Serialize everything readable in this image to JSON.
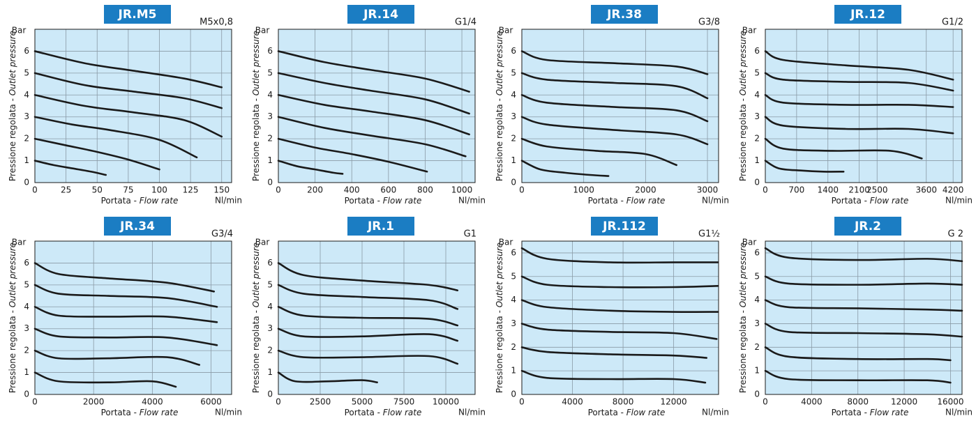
{
  "chart_data": [
    {
      "type": "line",
      "title": "JR.M5",
      "subtitle": "M5x0,8",
      "y_unit": "Bar",
      "x_unit": "Nl/min",
      "y_label": {
        "regular": "Pressione regolata - ",
        "italic": "Outlet pressure"
      },
      "x_label": {
        "regular": "Portata - ",
        "italic": "Flow rate"
      },
      "color": "#1a1a1a",
      "grid": true,
      "xlim": [
        0,
        158
      ],
      "xticks": [
        0,
        25,
        50,
        75,
        100,
        125,
        150
      ],
      "ylim": [
        0,
        7
      ],
      "yticks": [
        0,
        1,
        2,
        3,
        4,
        5,
        6
      ],
      "series": [
        {
          "x": [
            0,
            15,
            30,
            45,
            57
          ],
          "values": [
            1,
            0.8,
            0.65,
            0.5,
            0.35
          ]
        },
        {
          "x": [
            0,
            25,
            50,
            75,
            100
          ],
          "values": [
            2,
            1.7,
            1.4,
            1.05,
            0.6
          ]
        },
        {
          "x": [
            0,
            30,
            60,
            100,
            130
          ],
          "values": [
            3,
            2.65,
            2.4,
            1.95,
            1.15
          ]
        },
        {
          "x": [
            0,
            40,
            80,
            120,
            150
          ],
          "values": [
            4,
            3.5,
            3.2,
            2.85,
            2.1
          ]
        },
        {
          "x": [
            0,
            40,
            80,
            120,
            150
          ],
          "values": [
            5,
            4.45,
            4.15,
            3.85,
            3.4
          ]
        },
        {
          "x": [
            0,
            40,
            80,
            120,
            150
          ],
          "values": [
            6,
            5.45,
            5.1,
            4.75,
            4.35
          ]
        }
      ]
    },
    {
      "type": "line",
      "title": "JR.14",
      "subtitle": "G1/4",
      "y_unit": "Bar",
      "x_unit": "Nl/min",
      "y_label": {
        "regular": "Pressione regolata - ",
        "italic": "Outlet pressure"
      },
      "x_label": {
        "regular": "Portata - ",
        "italic": "Flow rate"
      },
      "color": "#1a1a1a",
      "grid": true,
      "xlim": [
        0,
        1072
      ],
      "xticks": [
        0,
        200,
        400,
        600,
        800,
        1000
      ],
      "ylim": [
        0,
        7
      ],
      "yticks": [
        0,
        1,
        2,
        3,
        4,
        5,
        6
      ],
      "series": [
        {
          "x": [
            0,
            100,
            200,
            300,
            350
          ],
          "values": [
            1,
            0.75,
            0.6,
            0.45,
            0.4
          ]
        },
        {
          "x": [
            0,
            200,
            400,
            600,
            810
          ],
          "values": [
            2,
            1.6,
            1.3,
            0.95,
            0.5
          ]
        },
        {
          "x": [
            0,
            250,
            500,
            800,
            1020
          ],
          "values": [
            3,
            2.5,
            2.15,
            1.75,
            1.2
          ]
        },
        {
          "x": [
            0,
            250,
            500,
            800,
            1040
          ],
          "values": [
            4,
            3.55,
            3.25,
            2.85,
            2.2
          ]
        },
        {
          "x": [
            0,
            250,
            500,
            800,
            1040
          ],
          "values": [
            5,
            4.55,
            4.2,
            3.8,
            3.15
          ]
        },
        {
          "x": [
            0,
            250,
            500,
            800,
            1040
          ],
          "values": [
            6,
            5.5,
            5.15,
            4.75,
            4.15
          ]
        }
      ]
    },
    {
      "type": "line",
      "title": "JR.38",
      "subtitle": "G3/8",
      "y_unit": "Bar",
      "x_unit": "Nl/min",
      "y_label": {
        "regular": "Pressione regolata - ",
        "italic": "Outlet pressure"
      },
      "x_label": {
        "regular": "Portata - ",
        "italic": "Flow rate"
      },
      "color": "#1a1a1a",
      "grid": true,
      "xlim": [
        0,
        3180
      ],
      "xticks": [
        0,
        1000,
        2000,
        3000
      ],
      "ylim": [
        0,
        7
      ],
      "yticks": [
        0,
        1,
        2,
        3,
        4,
        5,
        6
      ],
      "series": [
        {
          "x": [
            0,
            300,
            700,
            1100,
            1400
          ],
          "values": [
            1,
            0.6,
            0.45,
            0.35,
            0.3
          ]
        },
        {
          "x": [
            0,
            400,
            1200,
            2000,
            2500
          ],
          "values": [
            2,
            1.65,
            1.45,
            1.3,
            0.8
          ]
        },
        {
          "x": [
            0,
            400,
            1500,
            2500,
            3000
          ],
          "values": [
            3,
            2.65,
            2.4,
            2.2,
            1.75
          ]
        },
        {
          "x": [
            0,
            400,
            1500,
            2500,
            3000
          ],
          "values": [
            4,
            3.65,
            3.45,
            3.3,
            2.8
          ]
        },
        {
          "x": [
            0,
            400,
            1500,
            2500,
            3000
          ],
          "values": [
            5,
            4.7,
            4.55,
            4.4,
            3.85
          ]
        },
        {
          "x": [
            0,
            400,
            1500,
            2500,
            3000
          ],
          "values": [
            6,
            5.6,
            5.45,
            5.3,
            4.95
          ]
        }
      ]
    },
    {
      "type": "line",
      "title": "JR.12",
      "subtitle": "G1/2",
      "y_unit": "Bar",
      "x_unit": "Nl/min",
      "y_label": {
        "regular": "Pressione regolata - ",
        "italic": "Outlet pressure"
      },
      "x_label": {
        "regular": "Portata - ",
        "italic": "Flow rate"
      },
      "color": "#1a1a1a",
      "grid": true,
      "xlim": [
        0,
        4400
      ],
      "xticks": [
        0,
        700,
        1400,
        2100,
        2500,
        3600,
        4200
      ],
      "ylim": [
        0,
        7
      ],
      "yticks": [
        0,
        1,
        2,
        3,
        4,
        5,
        6
      ],
      "series": [
        {
          "x": [
            0,
            300,
            800,
            1300,
            1750
          ],
          "values": [
            1,
            0.65,
            0.55,
            0.5,
            0.5
          ]
        },
        {
          "x": [
            0,
            400,
            1500,
            2800,
            3500
          ],
          "values": [
            2,
            1.55,
            1.45,
            1.45,
            1.1
          ]
        },
        {
          "x": [
            0,
            400,
            1800,
            3200,
            4200
          ],
          "values": [
            3,
            2.6,
            2.45,
            2.45,
            2.25
          ]
        },
        {
          "x": [
            0,
            400,
            1800,
            3200,
            4200
          ],
          "values": [
            4,
            3.65,
            3.55,
            3.55,
            3.45
          ]
        },
        {
          "x": [
            0,
            400,
            1800,
            3200,
            4200
          ],
          "values": [
            5,
            4.7,
            4.6,
            4.55,
            4.2
          ]
        },
        {
          "x": [
            0,
            400,
            1800,
            3200,
            4200
          ],
          "values": [
            6,
            5.6,
            5.35,
            5.15,
            4.7
          ]
        }
      ]
    },
    {
      "type": "line",
      "title": "JR.34",
      "subtitle": "G3/4",
      "y_unit": "Bar",
      "x_unit": "Nl/min",
      "y_label": {
        "regular": "Pressione regolata - ",
        "italic": "Outlet pressure"
      },
      "x_label": {
        "regular": "Portata - ",
        "italic": "Flow rate"
      },
      "color": "#1a1a1a",
      "grid": true,
      "xlim": [
        0,
        6700
      ],
      "xticks": [
        0,
        2000,
        4000,
        6000
      ],
      "ylim": [
        0,
        7
      ],
      "yticks": [
        0,
        1,
        2,
        3,
        4,
        5,
        6
      ],
      "series": [
        {
          "x": [
            0,
            800,
            2500,
            4000,
            4800
          ],
          "values": [
            1,
            0.6,
            0.55,
            0.6,
            0.35
          ]
        },
        {
          "x": [
            0,
            800,
            2500,
            4500,
            5600
          ],
          "values": [
            2,
            1.65,
            1.65,
            1.7,
            1.35
          ]
        },
        {
          "x": [
            0,
            800,
            2500,
            4500,
            6200
          ],
          "values": [
            3,
            2.65,
            2.6,
            2.6,
            2.25
          ]
        },
        {
          "x": [
            0,
            800,
            2500,
            4500,
            6200
          ],
          "values": [
            4,
            3.6,
            3.55,
            3.55,
            3.3
          ]
        },
        {
          "x": [
            0,
            800,
            2500,
            4500,
            6200
          ],
          "values": [
            5,
            4.6,
            4.5,
            4.4,
            4.0
          ]
        },
        {
          "x": [
            0,
            800,
            2500,
            4500,
            6100
          ],
          "values": [
            6,
            5.5,
            5.3,
            5.1,
            4.7
          ]
        }
      ]
    },
    {
      "type": "line",
      "title": "JR.1",
      "subtitle": "G1",
      "y_unit": "Bar",
      "x_unit": "Nl/min",
      "y_label": {
        "regular": "Pressione regolata - ",
        "italic": "Outlet pressure"
      },
      "x_label": {
        "regular": "Portata - ",
        "italic": "Flow rate"
      },
      "color": "#1a1a1a",
      "grid": true,
      "xlim": [
        0,
        11750
      ],
      "xticks": [
        0,
        2500,
        5000,
        7500,
        10000
      ],
      "ylim": [
        0,
        7
      ],
      "yticks": [
        0,
        1,
        2,
        3,
        4,
        5,
        6
      ],
      "series": [
        {
          "x": [
            0,
            1000,
            3000,
            5000,
            5900
          ],
          "values": [
            1,
            0.6,
            0.6,
            0.65,
            0.55
          ]
        },
        {
          "x": [
            0,
            1500,
            5000,
            9000,
            10700
          ],
          "values": [
            2,
            1.7,
            1.7,
            1.75,
            1.4
          ]
        },
        {
          "x": [
            0,
            1500,
            5000,
            9000,
            10700
          ],
          "values": [
            3,
            2.65,
            2.65,
            2.75,
            2.45
          ]
        },
        {
          "x": [
            0,
            1500,
            5000,
            9000,
            10700
          ],
          "values": [
            4,
            3.6,
            3.5,
            3.45,
            3.15
          ]
        },
        {
          "x": [
            0,
            1500,
            5000,
            9000,
            10700
          ],
          "values": [
            5,
            4.6,
            4.45,
            4.3,
            3.9
          ]
        },
        {
          "x": [
            0,
            1500,
            5000,
            9000,
            10700
          ],
          "values": [
            6,
            5.45,
            5.2,
            5,
            4.75
          ]
        }
      ]
    },
    {
      "type": "line",
      "title": "JR.112",
      "subtitle": "G1½",
      "y_unit": "Bar",
      "x_unit": "Nl/min",
      "y_label": {
        "regular": "Pressione regolata - ",
        "italic": "Outlet pressure"
      },
      "x_label": {
        "regular": "Portata - ",
        "italic": "Flow rate"
      },
      "color": "#1a1a1a",
      "grid": true,
      "xlim": [
        0,
        15550
      ],
      "xticks": [
        0,
        4000,
        8000,
        12000
      ],
      "ylim": [
        0,
        6.5
      ],
      "yticks": [
        0,
        1,
        2,
        3,
        4,
        5,
        6
      ],
      "series": [
        {
          "x": [
            0,
            2000,
            7000,
            12000,
            14500
          ],
          "values": [
            1,
            0.7,
            0.65,
            0.65,
            0.5
          ]
        },
        {
          "x": [
            0,
            2000,
            7000,
            12000,
            14600
          ],
          "values": [
            2,
            1.8,
            1.7,
            1.65,
            1.55
          ]
        },
        {
          "x": [
            0,
            2000,
            7000,
            12000,
            15400
          ],
          "values": [
            3,
            2.75,
            2.65,
            2.6,
            2.35
          ]
        },
        {
          "x": [
            0,
            2000,
            7000,
            12000,
            15500
          ],
          "values": [
            4,
            3.7,
            3.55,
            3.5,
            3.5
          ]
        },
        {
          "x": [
            0,
            2000,
            7000,
            12000,
            15500
          ],
          "values": [
            5,
            4.65,
            4.55,
            4.55,
            4.6
          ]
        },
        {
          "x": [
            0,
            2000,
            7000,
            12000,
            15500
          ],
          "values": [
            6.2,
            5.75,
            5.6,
            5.6,
            5.6
          ]
        }
      ]
    },
    {
      "type": "line",
      "title": "JR.2",
      "subtitle": "G 2",
      "y_unit": "Bar",
      "x_unit": "Nl/min",
      "y_label": {
        "regular": "Pressione regolata - ",
        "italic": "Outlet pressure"
      },
      "x_label": {
        "regular": "Portata - ",
        "italic": "Flow rate"
      },
      "color": "#1a1a1a",
      "grid": true,
      "xlim": [
        0,
        17000
      ],
      "xticks": [
        0,
        4000,
        8000,
        12000,
        16000
      ],
      "ylim": [
        0,
        6.5
      ],
      "yticks": [
        0,
        1,
        2,
        3,
        4,
        5,
        6
      ],
      "series": [
        {
          "x": [
            0,
            2000,
            8000,
            14000,
            16000
          ],
          "values": [
            1,
            0.65,
            0.6,
            0.6,
            0.5
          ]
        },
        {
          "x": [
            0,
            2000,
            8000,
            14000,
            16000
          ],
          "values": [
            2,
            1.6,
            1.5,
            1.5,
            1.45
          ]
        },
        {
          "x": [
            0,
            2000,
            8000,
            14000,
            17000
          ],
          "values": [
            3,
            2.65,
            2.6,
            2.55,
            2.45
          ]
        },
        {
          "x": [
            0,
            2000,
            8000,
            14000,
            17000
          ],
          "values": [
            4,
            3.7,
            3.65,
            3.6,
            3.55
          ]
        },
        {
          "x": [
            0,
            2000,
            8000,
            14000,
            17000
          ],
          "values": [
            5,
            4.7,
            4.65,
            4.7,
            4.65
          ]
        },
        {
          "x": [
            0,
            2000,
            8000,
            14000,
            17000
          ],
          "values": [
            6.2,
            5.8,
            5.7,
            5.75,
            5.65
          ]
        }
      ]
    }
  ]
}
